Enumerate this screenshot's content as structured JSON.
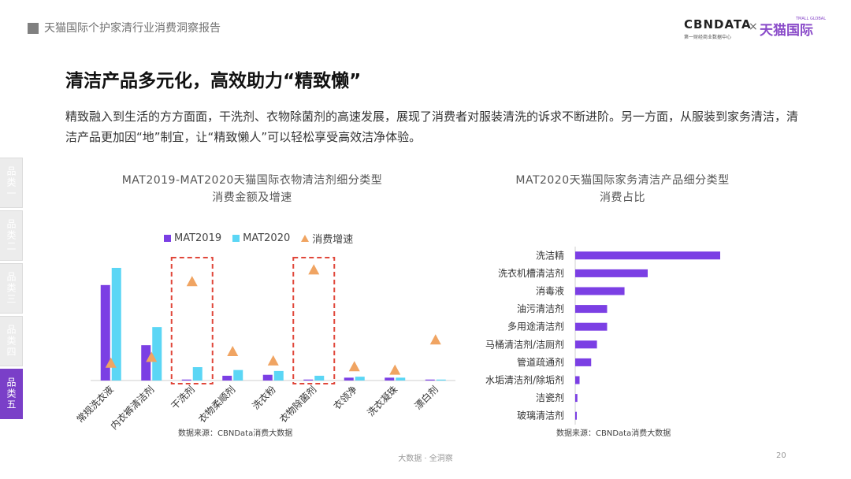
{
  "header": {
    "title": "天猫国际个护家清行业消费洞察报告"
  },
  "logo": {
    "cbn": "CBNDATA",
    "cbn_sub": "第一财经商业数据中心",
    "times": "×",
    "tmall": "天猫国际",
    "tmall_sub": "TMALL GLOBAL"
  },
  "page": {
    "heading": "清洁产品多元化，高效助力“精致懒”",
    "intro": "精致融入到生活的方方面面，干洗剂、衣物除菌剂的高速发展，展现了消费者对服装清洗的诉求不断进阶。另一方面，从服装到家务清洁，清洁产品更加因“地”制宜，让“精致懒人”可以轻松享受高效洁净体验。"
  },
  "side_tabs": [
    "品类一",
    "品类二",
    "品类三",
    "品类四",
    "品类五"
  ],
  "active_tab": 4,
  "colors": {
    "mat2019": "#7b3fe4",
    "mat2020": "#5bd6f5",
    "growth": "#f0a462",
    "highlight": "#e0473a",
    "hbar": "#7b3fe4",
    "active_tab": "#7a3fc8"
  },
  "chart_data": [
    {
      "type": "bar",
      "title_line1": "MAT2019-MAT2020天猫国际衣物清洁剂细分类型",
      "title_line2": "消费金额及增速",
      "categories": [
        "常规洗衣液",
        "内衣裤清洁剂",
        "干洗剂",
        "衣物柔顺剂",
        "洗衣粉",
        "衣物除菌剂",
        "衣领净",
        "洗衣凝珠",
        "漂白剂"
      ],
      "series": [
        {
          "name": "MAT2019",
          "values": [
            100,
            37,
            1,
            5,
            6,
            1,
            3,
            3,
            1
          ]
        },
        {
          "name": "MAT2020",
          "values": [
            118,
            56,
            14,
            11,
            10,
            5,
            4,
            3,
            1
          ]
        }
      ],
      "growth": {
        "name": "消费增速",
        "values": [
          15,
          20,
          85,
          25,
          17,
          95,
          12,
          9,
          35
        ]
      },
      "highlighted": [
        "干洗剂",
        "衣物除菌剂"
      ],
      "source": "数据来源：CBNData消费大数据"
    },
    {
      "type": "bar",
      "orientation": "horizontal",
      "title_line1": "MAT2020天猫国际家务清洁产品细分类型",
      "title_line2": "消费占比",
      "categories": [
        "洗洁精",
        "洗衣机槽清洁剂",
        "消毒液",
        "油污清洁剂",
        "多用途清洁剂",
        "马桶清洁剂/洁厕剂",
        "管道疏通剂",
        "水垢清洁剂/除垢剂",
        "洁瓷剂",
        "玻璃清洁剂"
      ],
      "values": [
        100,
        50,
        34,
        22,
        22,
        15,
        11,
        3,
        1.5,
        1
      ],
      "source": "数据来源：CBNData消费大数据"
    }
  ],
  "footer": {
    "text": "大数据 · 全洞察",
    "page_number": "20"
  }
}
